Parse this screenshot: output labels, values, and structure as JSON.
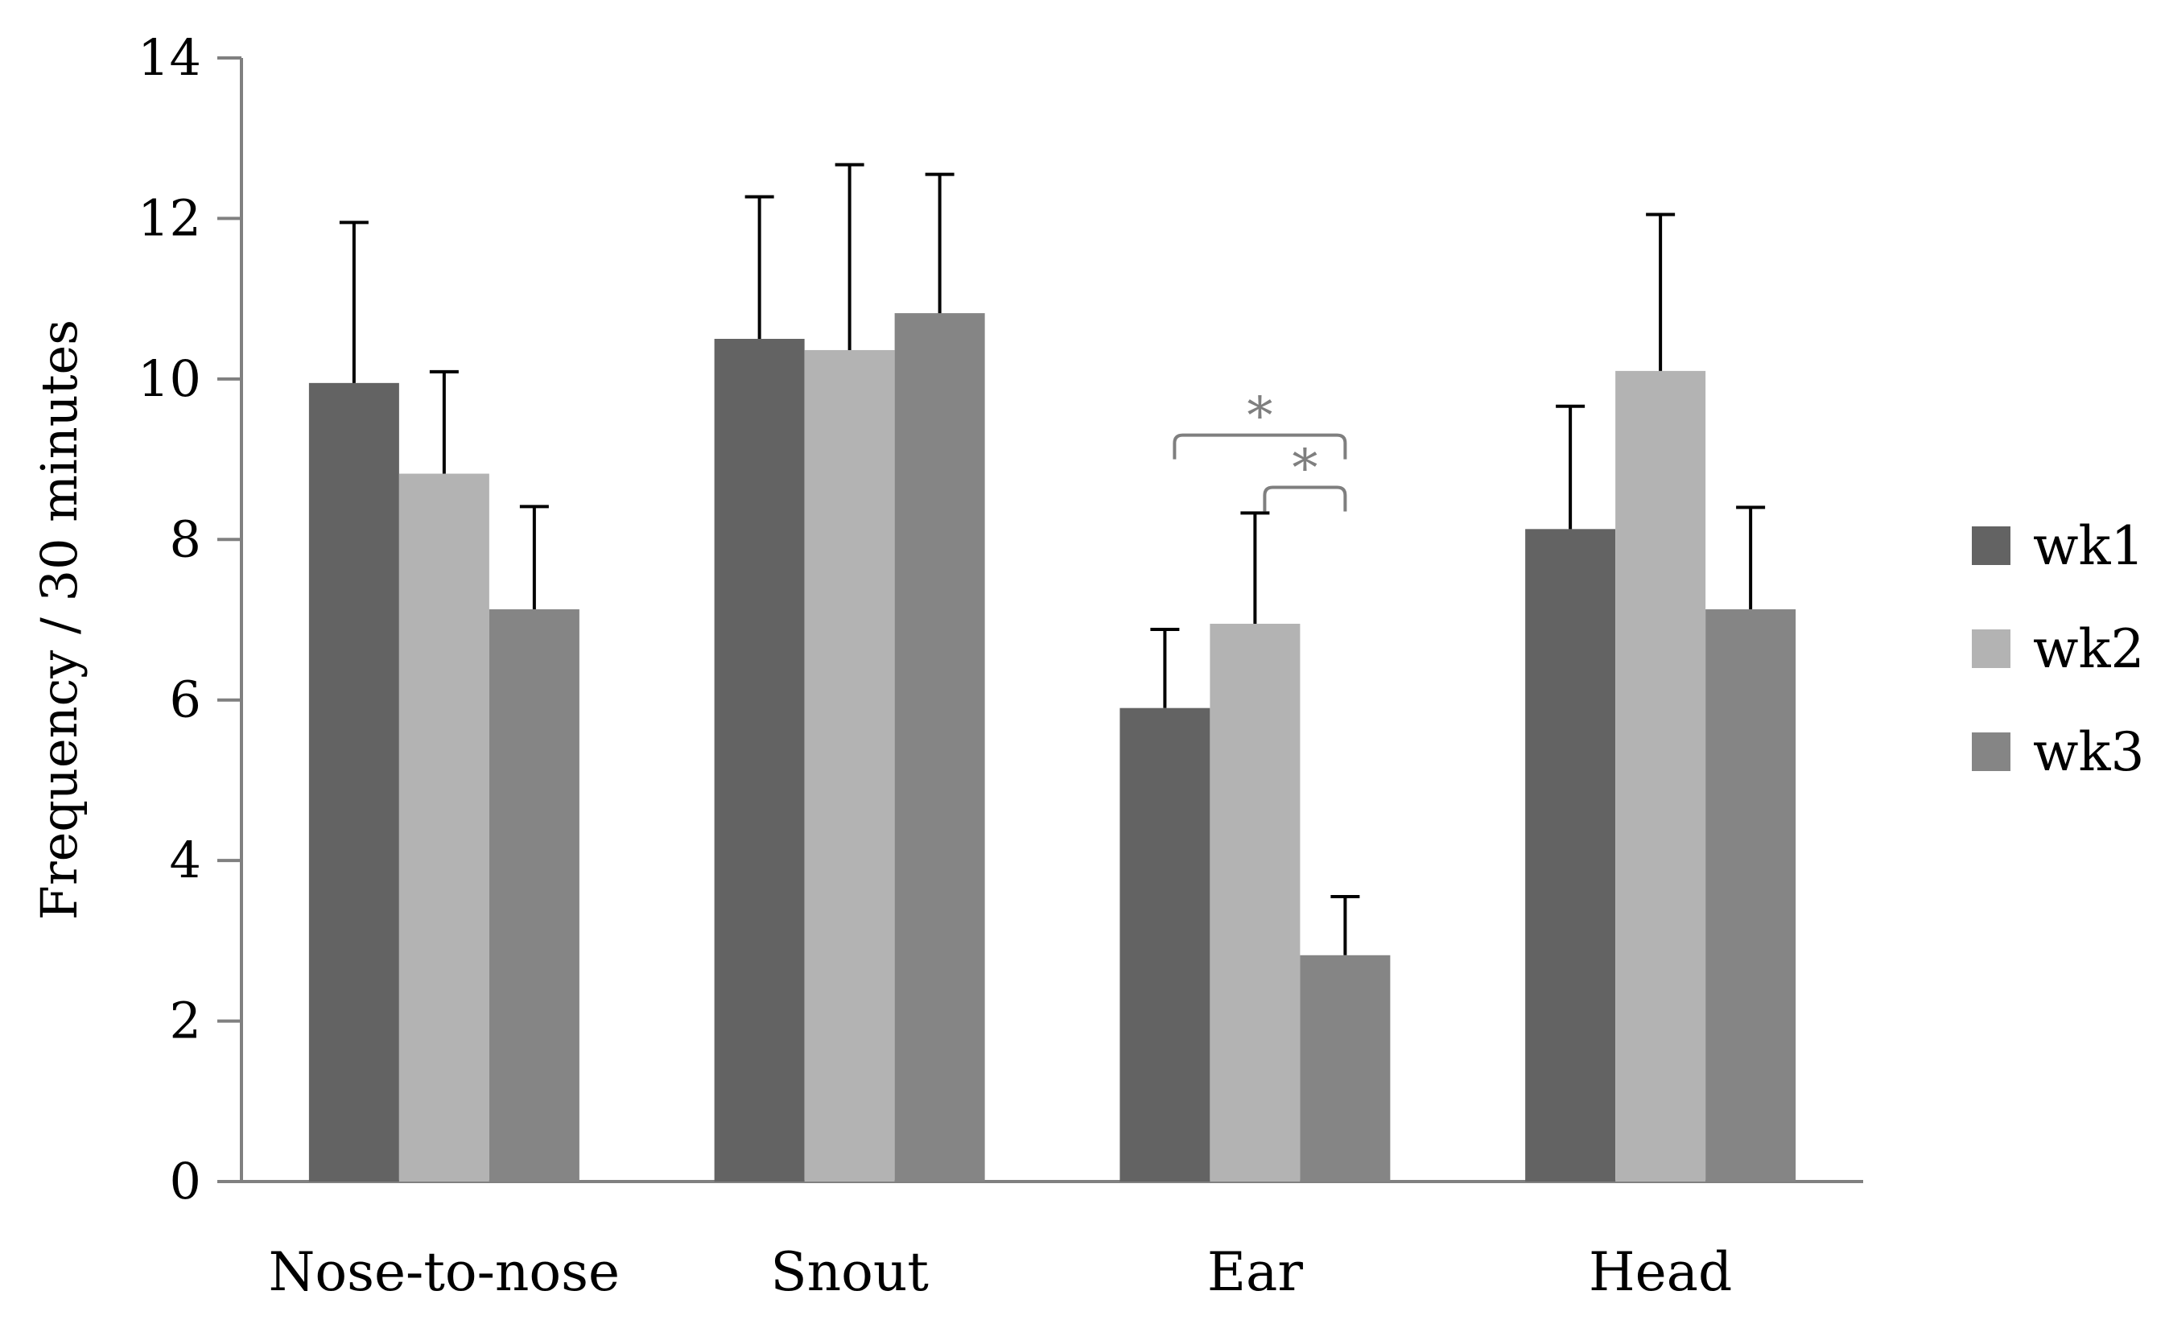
{
  "chart_data": {
    "type": "bar",
    "title": "",
    "xlabel": "",
    "ylabel": "Frequency / 30 minutes",
    "ylim": [
      0,
      14
    ],
    "yticks": [
      0,
      2,
      4,
      6,
      8,
      10,
      12,
      14
    ],
    "ytick_labels": [
      "0",
      "2",
      "4",
      "6",
      "8",
      "10",
      "12",
      "14"
    ],
    "grid": false,
    "legend_position": "right",
    "categories": [
      "Nose-to-nose",
      "Snout",
      "Ear",
      "Head"
    ],
    "series": [
      {
        "name": "wk1",
        "color": "#636363",
        "values": [
          9.95,
          10.5,
          5.9,
          8.13
        ],
        "errors": [
          2.0,
          1.77,
          0.98,
          1.53
        ]
      },
      {
        "name": "wk2",
        "color": "#b3b3b3",
        "values": [
          8.82,
          10.36,
          6.95,
          10.1
        ],
        "errors": [
          1.27,
          2.31,
          1.38,
          1.95
        ]
      },
      {
        "name": "wk3",
        "color": "#858585",
        "values": [
          7.13,
          10.82,
          2.82,
          7.13
        ],
        "errors": [
          1.28,
          1.73,
          0.73,
          1.27
        ]
      }
    ],
    "annotations": [
      {
        "label": "*",
        "category": "Ear",
        "from_series": "wk1",
        "to_series": "wk3",
        "level": 9.3,
        "color": "#7f7f7f"
      },
      {
        "label": "*",
        "category": "Ear",
        "from_series": "wk2",
        "to_series": "wk3",
        "level": 8.65,
        "color": "#7f7f7f"
      }
    ]
  }
}
